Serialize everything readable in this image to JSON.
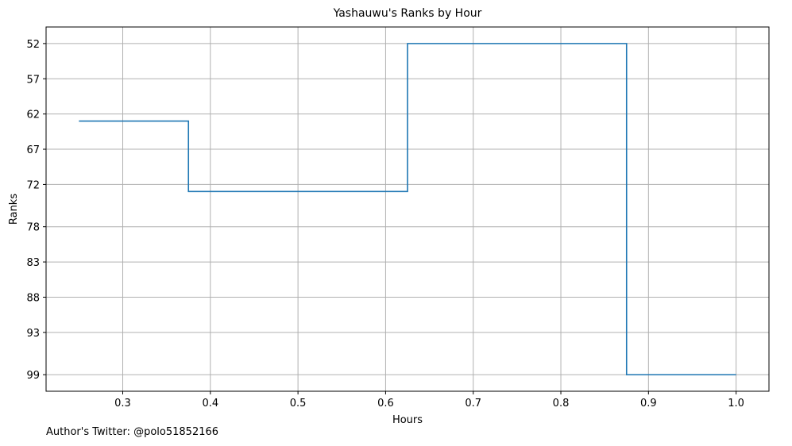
{
  "chart_data": {
    "type": "line",
    "step": "post",
    "title": "Yashauwu's Ranks by Hour",
    "xlabel": "Hours",
    "ylabel": "Ranks",
    "y_inverted": true,
    "grid": true,
    "x": [
      0.25,
      0.375,
      0.625,
      0.875,
      1.0
    ],
    "y": [
      63,
      73,
      52,
      99,
      99
    ],
    "xlim": [
      0.2125,
      1.0375
    ],
    "ylim": [
      101.35,
      49.65
    ],
    "x_ticks": [
      0.3,
      0.4,
      0.5,
      0.6,
      0.7,
      0.8,
      0.9,
      1.0
    ],
    "x_tick_labels": [
      "0.3",
      "0.4",
      "0.5",
      "0.6",
      "0.7",
      "0.8",
      "0.9",
      "1.0"
    ],
    "y_ticks": [
      52,
      57,
      62,
      67,
      72,
      78,
      83,
      88,
      93,
      99
    ],
    "y_tick_labels": [
      "52",
      "57",
      "62",
      "67",
      "72",
      "78",
      "83",
      "88",
      "93",
      "99"
    ],
    "line_color": "#1f77b4",
    "grid_color": "#b0b0b0"
  },
  "footer": {
    "credit": "Author's Twitter: @polo51852166"
  }
}
